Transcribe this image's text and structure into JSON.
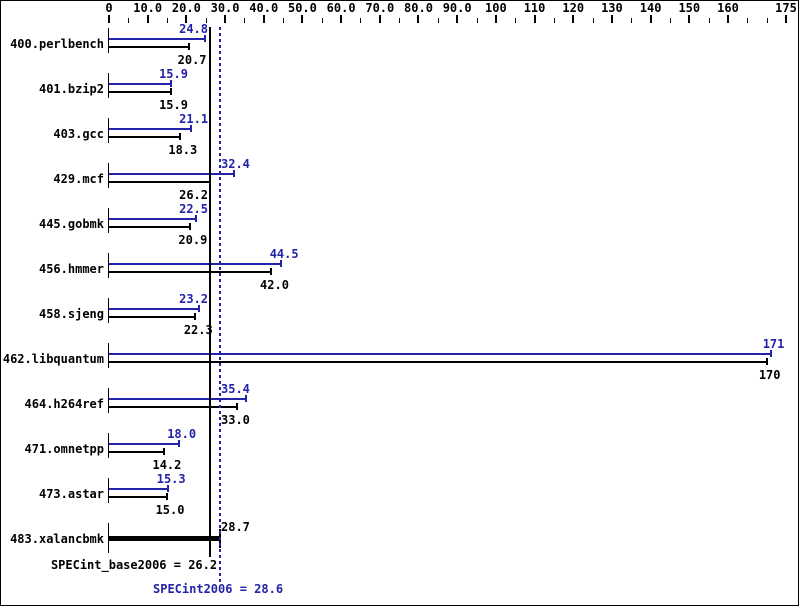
{
  "colors": {
    "accent_blue": "#2222aa",
    "bar_black": "#000000",
    "background": "#ffffff",
    "border": "#000000"
  },
  "chart_data": {
    "type": "bar",
    "orientation": "horizontal",
    "title": "",
    "xlabel": "",
    "ylabel": "",
    "grid": false,
    "axis": {
      "min": 0,
      "max": 175,
      "position": "top",
      "major_ticks": [
        {
          "value": 0,
          "label": "0"
        },
        {
          "value": 10,
          "label": "10.0"
        },
        {
          "value": 20,
          "label": "20.0"
        },
        {
          "value": 30,
          "label": "30.0"
        },
        {
          "value": 40,
          "label": "40.0"
        },
        {
          "value": 50,
          "label": "50.0"
        },
        {
          "value": 60,
          "label": "60.0"
        },
        {
          "value": 70,
          "label": "70.0"
        },
        {
          "value": 80,
          "label": "80.0"
        },
        {
          "value": 90,
          "label": "90.0"
        },
        {
          "value": 100,
          "label": "100"
        },
        {
          "value": 110,
          "label": "110"
        },
        {
          "value": 120,
          "label": "120"
        },
        {
          "value": 130,
          "label": "130"
        },
        {
          "value": 140,
          "label": "140"
        },
        {
          "value": 150,
          "label": "150"
        },
        {
          "value": 160,
          "label": "160"
        },
        {
          "value": 175,
          "label": "175"
        }
      ],
      "minor_ticks": [
        5,
        15,
        25,
        35,
        45,
        55,
        65,
        75,
        85,
        95,
        105,
        115,
        125,
        135,
        145,
        155,
        165,
        170
      ]
    },
    "series_note": "peak bars are blue (top), base bars are black (bottom)",
    "benchmarks": [
      {
        "name": "400.perlbench",
        "peak": 24.8,
        "peak_label": "24.8",
        "base": 20.7,
        "base_label": "20.7",
        "single": false
      },
      {
        "name": "401.bzip2",
        "peak": 15.9,
        "peak_label": "15.9",
        "base": 15.9,
        "base_label": "15.9",
        "single": false
      },
      {
        "name": "403.gcc",
        "peak": 21.1,
        "peak_label": "21.1",
        "base": 18.3,
        "base_label": "18.3",
        "single": false
      },
      {
        "name": "429.mcf",
        "peak": 32.4,
        "peak_label": "32.4",
        "base": 26.2,
        "base_label": "26.2",
        "single": false
      },
      {
        "name": "445.gobmk",
        "peak": 22.5,
        "peak_label": "22.5",
        "base": 20.9,
        "base_label": "20.9",
        "single": false
      },
      {
        "name": "456.hmmer",
        "peak": 44.5,
        "peak_label": "44.5",
        "base": 42.0,
        "base_label": "42.0",
        "single": false
      },
      {
        "name": "458.sjeng",
        "peak": 23.2,
        "peak_label": "23.2",
        "base": 22.3,
        "base_label": "22.3",
        "single": false
      },
      {
        "name": "462.libquantum",
        "peak": 171,
        "peak_label": "171",
        "base": 170,
        "base_label": "170",
        "single": false
      },
      {
        "name": "464.h264ref",
        "peak": 35.4,
        "peak_label": "35.4",
        "base": 33.0,
        "base_label": "33.0",
        "single": false
      },
      {
        "name": "471.omnetpp",
        "peak": 18.0,
        "peak_label": "18.0",
        "base": 14.2,
        "base_label": "14.2",
        "single": false
      },
      {
        "name": "473.astar",
        "peak": 15.3,
        "peak_label": "15.3",
        "base": 15.0,
        "base_label": "15.0",
        "single": false
      },
      {
        "name": "483.xalancbmk",
        "peak": null,
        "peak_label": "",
        "base": 28.7,
        "base_label": "28.7",
        "single": true
      }
    ],
    "means": {
      "base": {
        "value": 26.2,
        "text": "SPECint_base2006 = 26.2",
        "line_style": "solid",
        "color": "#000000"
      },
      "peak": {
        "value": 28.6,
        "text": "SPECint2006 = 28.6",
        "line_style": "dotted",
        "color": "#2222aa"
      }
    }
  }
}
